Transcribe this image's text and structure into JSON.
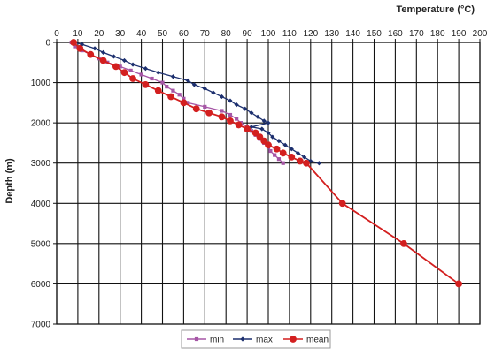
{
  "chart_data": {
    "type": "line",
    "xlabel": "Temperature (°C)",
    "ylabel": "Depth (m)",
    "xlim": [
      0,
      200
    ],
    "ylim": [
      0,
      7000
    ],
    "x_ticks": [
      0,
      10,
      20,
      30,
      40,
      50,
      60,
      70,
      80,
      90,
      100,
      110,
      120,
      130,
      140,
      150,
      160,
      170,
      180,
      190,
      200
    ],
    "y_ticks": [
      0,
      1000,
      2000,
      3000,
      4000,
      5000,
      6000,
      7000
    ],
    "x_axis_position": "top",
    "y_axis_inverted": true,
    "grid": true,
    "legend_position": "bottom",
    "series": [
      {
        "name": "min",
        "color": "#a656a6",
        "marker": "square",
        "points": [
          [
            7,
            0
          ],
          [
            9,
            100
          ],
          [
            12,
            200
          ],
          [
            16,
            300
          ],
          [
            20,
            400
          ],
          [
            24,
            500
          ],
          [
            30,
            600
          ],
          [
            35,
            700
          ],
          [
            40,
            800
          ],
          [
            45,
            900
          ],
          [
            50,
            1000
          ],
          [
            52,
            1100
          ],
          [
            55,
            1200
          ],
          [
            58,
            1300
          ],
          [
            60,
            1400
          ],
          [
            62,
            1500
          ],
          [
            70,
            1600
          ],
          [
            78,
            1700
          ],
          [
            82,
            1800
          ],
          [
            85,
            1900
          ],
          [
            87,
            2000
          ],
          [
            90,
            2100
          ],
          [
            92,
            2200
          ],
          [
            94,
            2300
          ],
          [
            96,
            2400
          ],
          [
            98,
            2500
          ],
          [
            100,
            2600
          ],
          [
            101,
            2700
          ],
          [
            103,
            2800
          ],
          [
            105,
            2900
          ],
          [
            107,
            3000
          ]
        ]
      },
      {
        "name": "max",
        "color": "#1c2f6e",
        "marker": "diamond",
        "points": [
          [
            8,
            0
          ],
          [
            12,
            50
          ],
          [
            18,
            150
          ],
          [
            22,
            250
          ],
          [
            27,
            350
          ],
          [
            32,
            450
          ],
          [
            36,
            550
          ],
          [
            42,
            650
          ],
          [
            48,
            750
          ],
          [
            55,
            850
          ],
          [
            62,
            950
          ],
          [
            65,
            1050
          ],
          [
            70,
            1150
          ],
          [
            74,
            1250
          ],
          [
            78,
            1350
          ],
          [
            82,
            1450
          ],
          [
            85,
            1550
          ],
          [
            89,
            1650
          ],
          [
            92,
            1750
          ],
          [
            95,
            1850
          ],
          [
            98,
            1950
          ],
          [
            100,
            2000
          ],
          [
            92,
            2100
          ],
          [
            97,
            2150
          ],
          [
            100,
            2250
          ],
          [
            102,
            2350
          ],
          [
            105,
            2450
          ],
          [
            108,
            2550
          ],
          [
            111,
            2650
          ],
          [
            114,
            2750
          ],
          [
            117,
            2850
          ],
          [
            120,
            2950
          ],
          [
            124,
            3000
          ]
        ]
      },
      {
        "name": "mean",
        "color": "#d31f1f",
        "marker": "circle",
        "points": [
          [
            8,
            0
          ],
          [
            11,
            150
          ],
          [
            16,
            300
          ],
          [
            22,
            450
          ],
          [
            28,
            600
          ],
          [
            32,
            750
          ],
          [
            36,
            900
          ],
          [
            42,
            1050
          ],
          [
            48,
            1200
          ],
          [
            54,
            1350
          ],
          [
            60,
            1500
          ],
          [
            66,
            1650
          ],
          [
            72,
            1750
          ],
          [
            78,
            1850
          ],
          [
            82,
            1950
          ],
          [
            86,
            2050
          ],
          [
            90,
            2150
          ],
          [
            94,
            2250
          ],
          [
            96,
            2350
          ],
          [
            98,
            2450
          ],
          [
            100,
            2550
          ],
          [
            104,
            2650
          ],
          [
            107,
            2750
          ],
          [
            111,
            2850
          ],
          [
            115,
            2950
          ],
          [
            118,
            3000
          ],
          [
            135,
            4000
          ],
          [
            164,
            5000
          ],
          [
            190,
            6000
          ]
        ]
      }
    ]
  }
}
